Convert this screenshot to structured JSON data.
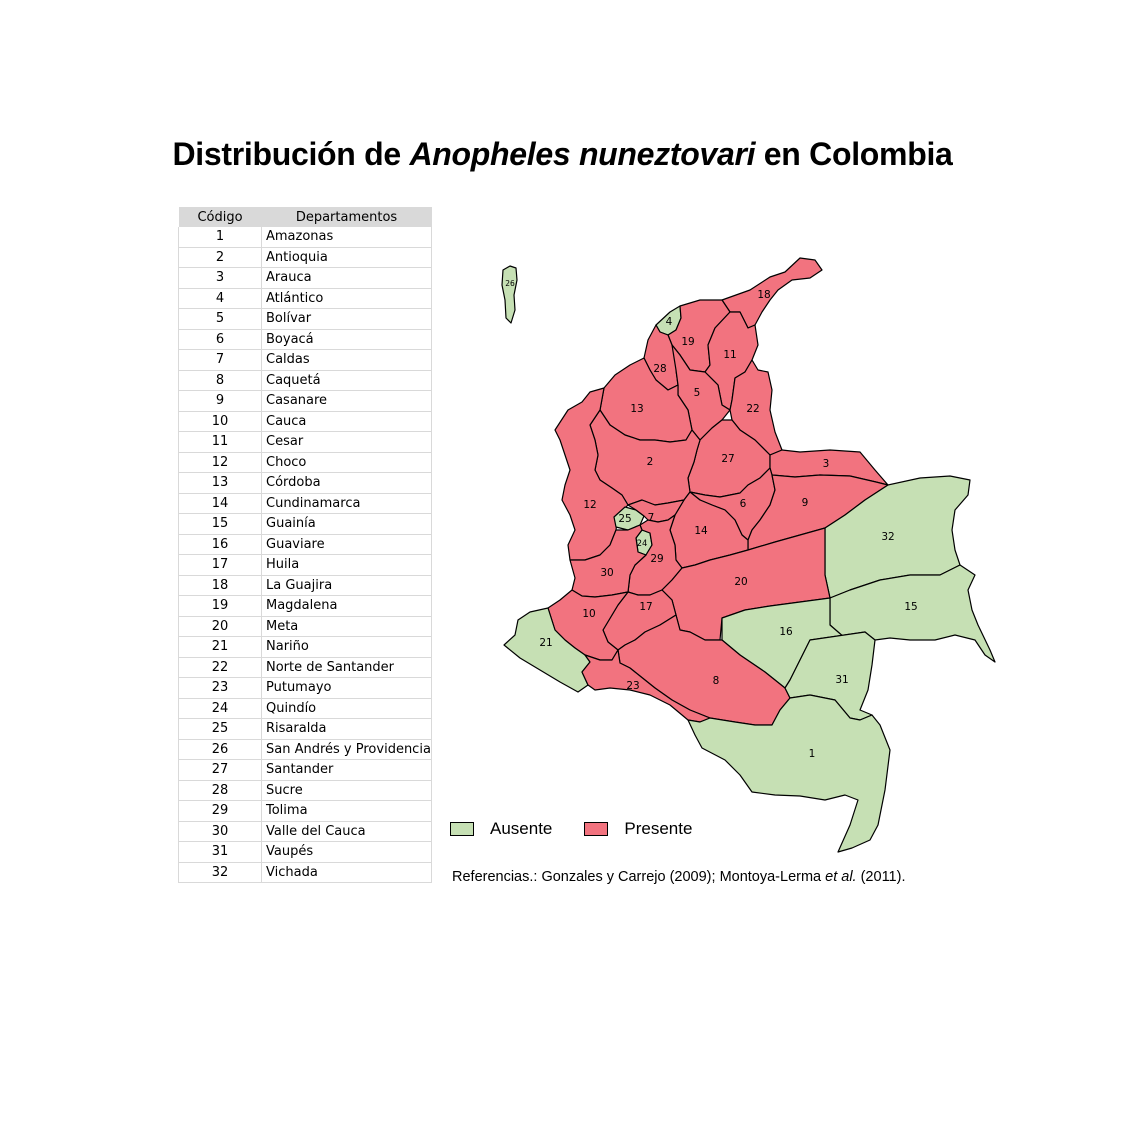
{
  "title": {
    "prefix": "Distribución de ",
    "species": "Anopheles nuneztovari",
    "suffix": " en Colombia"
  },
  "table": {
    "headers": {
      "code": "Código",
      "department": "Departamentos"
    },
    "rows": [
      {
        "code": "1",
        "name": "Amazonas"
      },
      {
        "code": "2",
        "name": "Antioquia"
      },
      {
        "code": "3",
        "name": "Arauca"
      },
      {
        "code": "4",
        "name": "Atlántico"
      },
      {
        "code": "5",
        "name": "Bolívar"
      },
      {
        "code": "6",
        "name": "Boyacá"
      },
      {
        "code": "7",
        "name": "Caldas"
      },
      {
        "code": "8",
        "name": "Caquetá"
      },
      {
        "code": "9",
        "name": "Casanare"
      },
      {
        "code": "10",
        "name": "Cauca"
      },
      {
        "code": "11",
        "name": "Cesar"
      },
      {
        "code": "12",
        "name": "Choco"
      },
      {
        "code": "13",
        "name": "Córdoba"
      },
      {
        "code": "14",
        "name": "Cundinamarca"
      },
      {
        "code": "15",
        "name": "Guainía"
      },
      {
        "code": "16",
        "name": "Guaviare"
      },
      {
        "code": "17",
        "name": "Huila"
      },
      {
        "code": "18",
        "name": "La Guajira"
      },
      {
        "code": "19",
        "name": "Magdalena"
      },
      {
        "code": "20",
        "name": "Meta"
      },
      {
        "code": "21",
        "name": "Nariño"
      },
      {
        "code": "22",
        "name": "Norte de Santander"
      },
      {
        "code": "23",
        "name": "Putumayo"
      },
      {
        "code": "24",
        "name": "Quindío"
      },
      {
        "code": "25",
        "name": "Risaralda"
      },
      {
        "code": "26",
        "name": "San Andrés y Providencia"
      },
      {
        "code": "27",
        "name": "Santander"
      },
      {
        "code": "28",
        "name": "Sucre"
      },
      {
        "code": "29",
        "name": "Tolima"
      },
      {
        "code": "30",
        "name": "Valle del Cauca"
      },
      {
        "code": "31",
        "name": "Vaupés"
      },
      {
        "code": "32",
        "name": "Vichada"
      }
    ]
  },
  "legend": {
    "absent": {
      "label": "Ausente",
      "color": "#c6e0b4"
    },
    "present": {
      "label": "Presente",
      "color": "#f2737f"
    }
  },
  "status": {
    "1": "absent",
    "2": "present",
    "3": "present",
    "4": "absent",
    "5": "present",
    "6": "present",
    "7": "present",
    "8": "present",
    "9": "present",
    "10": "present",
    "11": "present",
    "12": "present",
    "13": "present",
    "14": "present",
    "15": "absent",
    "16": "absent",
    "17": "present",
    "18": "present",
    "19": "present",
    "20": "present",
    "21": "absent",
    "22": "present",
    "23": "present",
    "24": "absent",
    "25": "absent",
    "26": "absent",
    "27": "present",
    "28": "present",
    "29": "present",
    "30": "present",
    "31": "absent",
    "32": "absent"
  },
  "references": {
    "prefix": "Referencias.: Gonzales y Carrejo (2009); Montoya-Lerma ",
    "etal": "et al.",
    "suffix": " (2011)."
  }
}
